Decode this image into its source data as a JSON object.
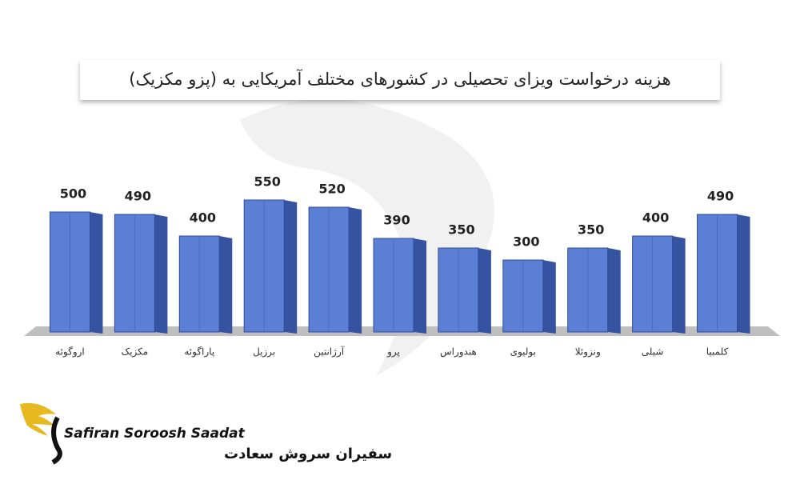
{
  "chart_data": {
    "type": "bar",
    "title": "هزینه درخواست ویزای تحصیلی در کشورهای مختلف آمریکایی به (پزو مکزیک)",
    "categories": [
      "اروگوئه",
      "مکزیک",
      "پاراگوئه",
      "برزیل",
      "آرژانتین",
      "پرو",
      "هندوراس",
      "بولیوی",
      "ونزوئلا",
      "شیلی",
      "کلمبیا"
    ],
    "values": [
      500,
      490,
      400,
      550,
      520,
      390,
      350,
      300,
      350,
      400,
      490
    ],
    "color": "#5b7fd4",
    "side_color": "#3553a0"
  },
  "logo": {
    "name_en": "Safiran Soroosh Saadat",
    "name_fa": "سفیران سروش سعادت"
  }
}
